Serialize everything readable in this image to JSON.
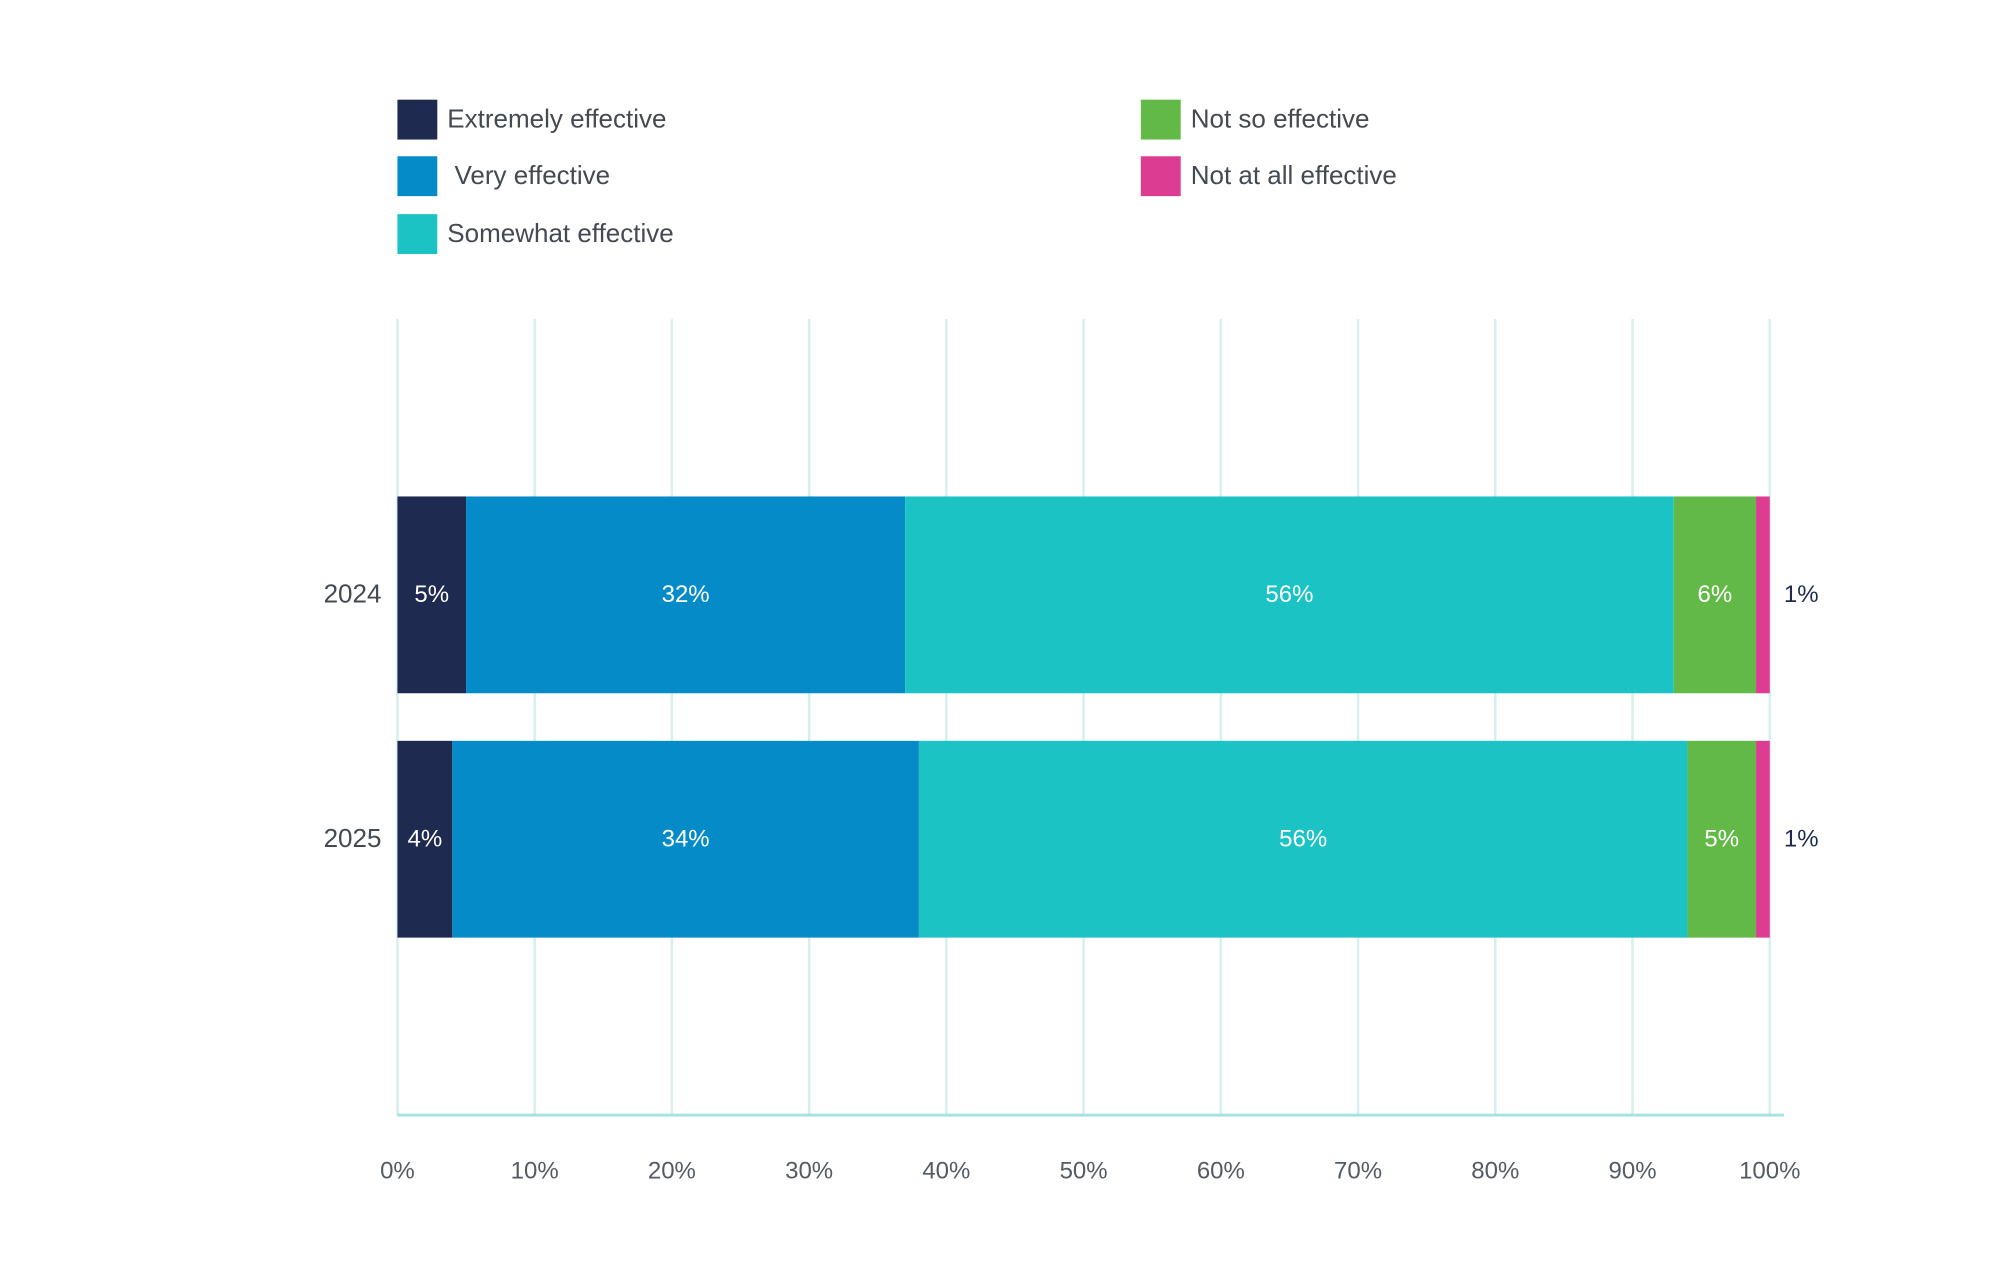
{
  "chart_data": {
    "type": "bar",
    "orientation": "horizontal",
    "stacked": true,
    "categories": [
      "2024",
      "2025"
    ],
    "series": [
      {
        "name": "Extremely effective",
        "values": [
          5,
          4
        ],
        "color": "#1e2a4f"
      },
      {
        "name": " Very effective",
        "values": [
          32,
          34
        ],
        "color": "#068bc9"
      },
      {
        "name": "Somewhat effective",
        "values": [
          56,
          56
        ],
        "color": "#1bc3c4"
      },
      {
        "name": "Not so effective",
        "values": [
          6,
          5
        ],
        "color": "#62b947"
      },
      {
        "name": "Not at all effective",
        "values": [
          1,
          1
        ],
        "color": "#dc3c91"
      }
    ],
    "data_label_suffix": "%",
    "xlim": [
      0,
      100
    ],
    "xticks": [
      "0%",
      "10%",
      "20%",
      "30%",
      "40%",
      "50%",
      "60%",
      "70%",
      "80%",
      "90%",
      "100%"
    ],
    "grid": true,
    "legend_position": "top",
    "title": "",
    "xlabel": "",
    "ylabel": "",
    "colors": {
      "grid": "#d4f0ef",
      "axis": "#a6e4e2",
      "label_dark": "#1e2a4f",
      "label_light": "#ffffff"
    }
  }
}
